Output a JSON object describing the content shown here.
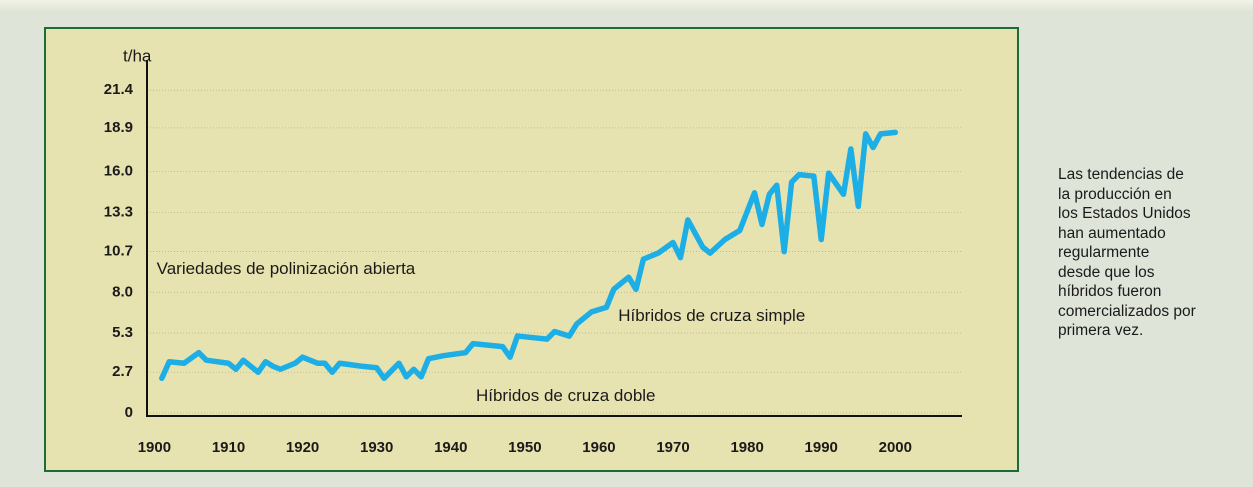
{
  "chart_data": {
    "type": "line",
    "y_unit": "t/ha",
    "x": [
      1901,
      1902,
      1904,
      1906,
      1907,
      1910,
      1911,
      1912,
      1913,
      1914,
      1915,
      1916,
      1917,
      1918,
      1919,
      1920,
      1921,
      1922,
      1923,
      1924,
      1925,
      1928,
      1930,
      1931,
      1933,
      1934,
      1935,
      1936,
      1937,
      1939,
      1942,
      1943,
      1947,
      1948,
      1949,
      1951,
      1953,
      1954,
      1956,
      1957,
      1959,
      1961,
      1962,
      1964,
      1965,
      1966,
      1968,
      1970,
      1971,
      1972,
      1974,
      1975,
      1977,
      1979,
      1981,
      1982,
      1983,
      1984,
      1985,
      1986,
      1987,
      1989,
      1990,
      1991,
      1993,
      1994,
      1995,
      1996,
      1997,
      1998,
      2000
    ],
    "values": [
      2.3,
      3.4,
      3.3,
      4.0,
      3.5,
      3.3,
      2.9,
      3.5,
      3.1,
      2.7,
      3.4,
      3.1,
      2.9,
      3.1,
      3.3,
      3.7,
      3.5,
      3.3,
      3.3,
      2.7,
      3.3,
      3.1,
      3.0,
      2.3,
      3.3,
      2.4,
      2.9,
      2.4,
      3.6,
      3.8,
      4.0,
      4.6,
      4.4,
      3.7,
      5.1,
      5.0,
      4.9,
      5.4,
      5.1,
      5.9,
      6.7,
      7.0,
      8.2,
      9.0,
      8.2,
      10.2,
      10.6,
      11.3,
      10.3,
      12.8,
      11.0,
      10.6,
      11.5,
      12.1,
      14.6,
      12.5,
      14.5,
      15.1,
      10.7,
      15.3,
      15.8,
      15.7,
      11.5,
      15.9,
      14.5,
      17.5,
      13.7,
      18.5,
      17.6,
      18.5,
      18.6
    ],
    "color": "#1eaee6",
    "xlim": [
      1899,
      2009
    ],
    "xticks": [
      1900,
      1910,
      1920,
      1930,
      1940,
      1950,
      1960,
      1970,
      1980,
      1990,
      2000
    ],
    "ylim": [
      0,
      23.4
    ],
    "yticks": [
      0,
      2.7,
      5.3,
      {
        "value": 8,
        "label": "8.0"
      },
      10.7,
      13.3,
      {
        "value": 16,
        "label": "16.0"
      },
      18.9,
      21.4
    ],
    "grid": true,
    "annotations": [
      {
        "text": "Variedades de polinización abierta",
        "x": 1900.3,
        "y": 9.5
      },
      {
        "text": "Híbridos de cruza simple",
        "x": 1962.6,
        "y": 6.4
      },
      {
        "text": "Híbridos de cruza doble",
        "x": 1943.4,
        "y": 1.1
      }
    ]
  },
  "side_note": [
    "Las tendencias de",
    "la producción en",
    "los Estados Unidos",
    "han aumentado",
    "regularmente",
    "desde que los",
    "híbridos fueron",
    "comercializados por",
    "primera vez."
  ]
}
